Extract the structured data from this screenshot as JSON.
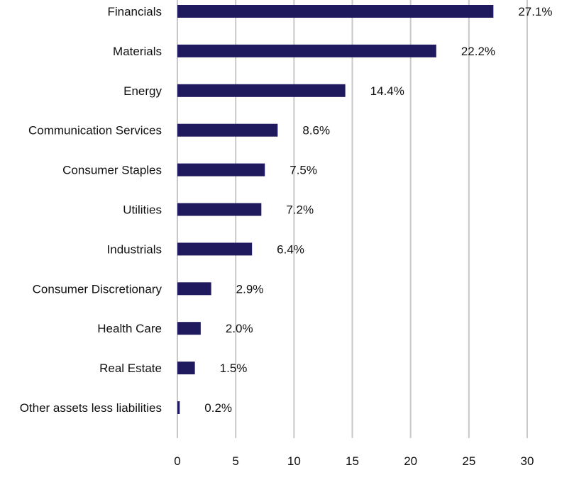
{
  "chart_data": {
    "type": "bar",
    "orientation": "horizontal",
    "title": "",
    "xlabel": "",
    "ylabel": "",
    "categories": [
      "Financials",
      "Materials",
      "Energy",
      "Communication Services",
      "Consumer Staples",
      "Utilities",
      "Industrials",
      "Consumer Discretionary",
      "Health Care",
      "Real Estate",
      "Other assets less liabilities"
    ],
    "values": [
      27.1,
      22.2,
      14.4,
      8.6,
      7.5,
      7.2,
      6.4,
      2.9,
      2.0,
      1.5,
      0.2
    ],
    "data_labels": [
      "27.1%",
      "22.2%",
      "14.4%",
      "8.6%",
      "7.5%",
      "7.2%",
      "6.4%",
      "2.9%",
      "2.0%",
      "1.5%",
      "0.2%"
    ],
    "xlim": [
      0,
      30
    ],
    "x_ticks": [
      "0",
      "5",
      "10",
      "15",
      "20",
      "25",
      "30"
    ],
    "grid": "vertical",
    "legend": "none",
    "colors": {
      "bar": "#1f1a5e",
      "grid": "#c8c8c8"
    }
  }
}
